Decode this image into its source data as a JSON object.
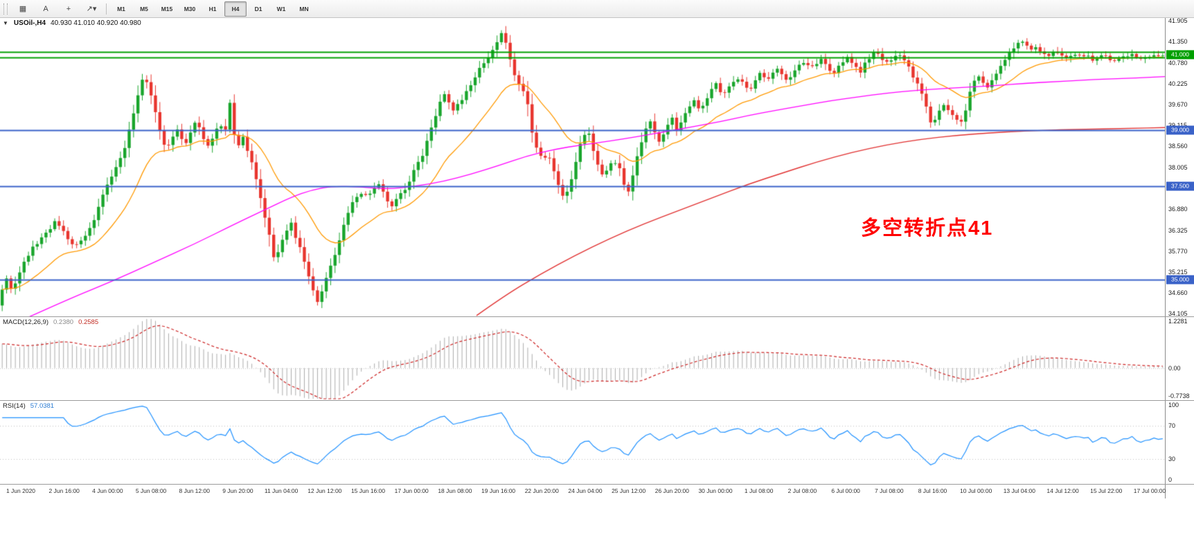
{
  "toolbar": {
    "tools": [
      {
        "name": "chart-window-button",
        "glyph": "▦"
      },
      {
        "name": "text-label-button",
        "glyph": "A"
      },
      {
        "name": "crosshair-button",
        "glyph": "+"
      },
      {
        "name": "arrow-objects-button",
        "glyph": "↗",
        "caret": "▾"
      }
    ],
    "timeframes": [
      "M1",
      "M5",
      "M15",
      "M30",
      "H1",
      "H4",
      "D1",
      "W1",
      "MN"
    ],
    "active_timeframe": "H4"
  },
  "main_chart": {
    "symbol": "USOil-,H4",
    "ohlc": "40.930 41.010 40.920 40.980",
    "collapse_arrow": "▼",
    "price_max": 41.98,
    "price_min": 34.03,
    "axis_labels": [
      "41.905",
      "41.350",
      "40.780",
      "40.225",
      "39.670",
      "39.115",
      "38.560",
      "38.005",
      "37.450",
      "36.880",
      "36.325",
      "35.770",
      "35.215",
      "34.660",
      "34.105"
    ],
    "horizontal_lines": [
      {
        "price": 41.07,
        "color": "#00A000",
        "width": 1.8
      },
      {
        "price": 40.93,
        "color": "#00A000",
        "width": 1.8
      },
      {
        "price": 39.0,
        "color": "#3A62C8",
        "width": 1.8
      },
      {
        "price": 37.5,
        "color": "#3A62C8",
        "width": 1.8
      },
      {
        "price": 35.0,
        "color": "#3A62C8",
        "width": 1.8
      }
    ],
    "price_badges": [
      {
        "text": "41.000",
        "bg": "#00A000",
        "price": 41.0
      },
      {
        "text": "39.000",
        "bg": "#3A62C8",
        "price": 39.0
      },
      {
        "text": "37.500",
        "bg": "#3A62C8",
        "price": 37.5
      },
      {
        "text": "35.000",
        "bg": "#3A62C8",
        "price": 35.0
      }
    ],
    "annotation": {
      "text": "多空转折点41",
      "color": "#FF0000"
    },
    "candle_colors": {
      "up": "#19A52C",
      "down": "#E8352E"
    },
    "ma": {
      "fast": {
        "type": "ema",
        "period": 20,
        "color": "#FF9900"
      },
      "mid": {
        "color": "#FF00FF",
        "points": [
          [
            40,
            34.0
          ],
          [
            100,
            34.5
          ],
          [
            160,
            34.95
          ],
          [
            220,
            35.45
          ],
          [
            280,
            35.95
          ],
          [
            340,
            36.5
          ],
          [
            380,
            36.85
          ],
          [
            420,
            37.2
          ],
          [
            450,
            37.4
          ],
          [
            480,
            37.5
          ],
          [
            520,
            37.48
          ],
          [
            560,
            37.42
          ],
          [
            600,
            37.5
          ],
          [
            640,
            37.62
          ],
          [
            680,
            37.82
          ],
          [
            720,
            38.05
          ],
          [
            760,
            38.3
          ],
          [
            800,
            38.48
          ],
          [
            840,
            38.6
          ],
          [
            880,
            38.7
          ],
          [
            920,
            38.82
          ],
          [
            960,
            38.95
          ],
          [
            1000,
            39.08
          ],
          [
            1040,
            39.22
          ],
          [
            1080,
            39.38
          ],
          [
            1120,
            39.52
          ],
          [
            1160,
            39.65
          ],
          [
            1200,
            39.78
          ],
          [
            1240,
            39.88
          ],
          [
            1280,
            39.98
          ],
          [
            1320,
            40.05
          ],
          [
            1360,
            40.1
          ],
          [
            1400,
            40.14
          ],
          [
            1440,
            40.18
          ],
          [
            1480,
            40.24
          ],
          [
            1520,
            40.28
          ],
          [
            1560,
            40.32
          ],
          [
            1600,
            40.36
          ],
          [
            1640,
            40.38
          ],
          [
            1682,
            40.42
          ]
        ]
      },
      "slow": {
        "color": "#E03030",
        "points": [
          [
            688,
            34.05
          ],
          [
            730,
            34.6
          ],
          [
            780,
            35.15
          ],
          [
            830,
            35.65
          ],
          [
            880,
            36.1
          ],
          [
            930,
            36.5
          ],
          [
            980,
            36.85
          ],
          [
            1030,
            37.2
          ],
          [
            1080,
            37.55
          ],
          [
            1130,
            37.85
          ],
          [
            1180,
            38.15
          ],
          [
            1230,
            38.4
          ],
          [
            1280,
            38.6
          ],
          [
            1330,
            38.75
          ],
          [
            1380,
            38.85
          ],
          [
            1430,
            38.92
          ],
          [
            1480,
            38.97
          ],
          [
            1530,
            39.0
          ],
          [
            1580,
            39.02
          ],
          [
            1630,
            39.04
          ],
          [
            1682,
            39.06
          ]
        ]
      }
    }
  },
  "chart_data": {
    "type": "candlestick-ohlc",
    "symbol": "USOil",
    "timeframe": "H4",
    "last_ohlc": {
      "open": "40.930",
      "high": "41.010",
      "low": "40.920",
      "close": "40.980"
    },
    "bars": 266,
    "y_range": [
      34.03,
      41.98
    ],
    "price_path": [
      [
        0,
        34.5
      ],
      [
        8,
        35.1
      ],
      [
        18,
        34.7
      ],
      [
        30,
        35.3
      ],
      [
        45,
        35.8
      ],
      [
        60,
        36.1
      ],
      [
        80,
        36.55
      ],
      [
        95,
        36.2
      ],
      [
        105,
        35.9
      ],
      [
        118,
        36.1
      ],
      [
        132,
        36.4
      ],
      [
        150,
        37.3
      ],
      [
        165,
        37.9
      ],
      [
        180,
        38.5
      ],
      [
        195,
        39.6
      ],
      [
        207,
        40.45
      ],
      [
        215,
        40.1
      ],
      [
        222,
        39.7
      ],
      [
        232,
        38.9
      ],
      [
        240,
        38.45
      ],
      [
        250,
        38.8
      ],
      [
        258,
        39.1
      ],
      [
        266,
        38.5
      ],
      [
        274,
        38.9
      ],
      [
        283,
        39.3
      ],
      [
        292,
        38.8
      ],
      [
        300,
        38.6
      ],
      [
        310,
        38.9
      ],
      [
        318,
        39.15
      ],
      [
        326,
        39.05
      ],
      [
        331,
        39.8
      ],
      [
        338,
        38.9
      ],
      [
        345,
        38.6
      ],
      [
        352,
        38.8
      ],
      [
        360,
        38.3
      ],
      [
        368,
        37.9
      ],
      [
        378,
        37.0
      ],
      [
        388,
        36.3
      ],
      [
        396,
        35.5
      ],
      [
        404,
        35.9
      ],
      [
        413,
        36.3
      ],
      [
        420,
        36.55
      ],
      [
        428,
        36.1
      ],
      [
        436,
        35.7
      ],
      [
        444,
        35.2
      ],
      [
        452,
        34.7
      ],
      [
        460,
        34.4
      ],
      [
        468,
        34.9
      ],
      [
        476,
        35.3
      ],
      [
        484,
        35.7
      ],
      [
        492,
        36.2
      ],
      [
        500,
        36.7
      ],
      [
        508,
        37.05
      ],
      [
        516,
        37.2
      ],
      [
        524,
        37.35
      ],
      [
        532,
        37.2
      ],
      [
        540,
        37.45
      ],
      [
        548,
        37.6
      ],
      [
        556,
        37.2
      ],
      [
        564,
        36.95
      ],
      [
        572,
        37.15
      ],
      [
        580,
        37.35
      ],
      [
        588,
        37.5
      ],
      [
        596,
        37.9
      ],
      [
        604,
        38.15
      ],
      [
        612,
        38.4
      ],
      [
        620,
        38.9
      ],
      [
        628,
        39.3
      ],
      [
        636,
        39.8
      ],
      [
        644,
        40.0
      ],
      [
        652,
        39.5
      ],
      [
        660,
        39.65
      ],
      [
        668,
        39.85
      ],
      [
        676,
        40.1
      ],
      [
        684,
        40.3
      ],
      [
        692,
        40.6
      ],
      [
        700,
        40.85
      ],
      [
        708,
        41.0
      ],
      [
        716,
        41.25
      ],
      [
        724,
        41.55
      ],
      [
        730,
        41.3
      ],
      [
        736,
        40.9
      ],
      [
        744,
        40.4
      ],
      [
        752,
        40.15
      ],
      [
        760,
        39.9
      ],
      [
        768,
        38.9
      ],
      [
        776,
        38.4
      ],
      [
        784,
        38.2
      ],
      [
        792,
        38.35
      ],
      [
        800,
        37.9
      ],
      [
        808,
        37.4
      ],
      [
        816,
        37.15
      ],
      [
        824,
        37.6
      ],
      [
        832,
        38.2
      ],
      [
        840,
        38.75
      ],
      [
        848,
        39.05
      ],
      [
        856,
        38.5
      ],
      [
        862,
        38.1
      ],
      [
        870,
        37.75
      ],
      [
        878,
        38.0
      ],
      [
        886,
        38.2
      ],
      [
        894,
        38.05
      ],
      [
        900,
        37.6
      ],
      [
        906,
        37.3
      ],
      [
        914,
        37.8
      ],
      [
        922,
        38.4
      ],
      [
        930,
        38.95
      ],
      [
        938,
        39.3
      ],
      [
        946,
        38.9
      ],
      [
        954,
        38.65
      ],
      [
        962,
        39.1
      ],
      [
        970,
        39.35
      ],
      [
        978,
        38.95
      ],
      [
        986,
        39.3
      ],
      [
        994,
        39.6
      ],
      [
        1002,
        39.8
      ],
      [
        1010,
        39.5
      ],
      [
        1018,
        39.7
      ],
      [
        1026,
        40.0
      ],
      [
        1034,
        40.25
      ],
      [
        1042,
        39.95
      ],
      [
        1050,
        40.1
      ],
      [
        1058,
        40.25
      ],
      [
        1066,
        40.4
      ],
      [
        1074,
        40.2
      ],
      [
        1082,
        40.05
      ],
      [
        1090,
        40.3
      ],
      [
        1098,
        40.5
      ],
      [
        1106,
        40.3
      ],
      [
        1114,
        40.5
      ],
      [
        1122,
        40.65
      ],
      [
        1130,
        40.45
      ],
      [
        1138,
        40.3
      ],
      [
        1146,
        40.55
      ],
      [
        1154,
        40.7
      ],
      [
        1162,
        40.85
      ],
      [
        1170,
        40.6
      ],
      [
        1178,
        40.75
      ],
      [
        1186,
        40.9
      ],
      [
        1194,
        40.7
      ],
      [
        1202,
        40.5
      ],
      [
        1210,
        40.65
      ],
      [
        1218,
        40.8
      ],
      [
        1226,
        40.95
      ],
      [
        1234,
        40.7
      ],
      [
        1242,
        40.55
      ],
      [
        1250,
        40.8
      ],
      [
        1258,
        41.0
      ],
      [
        1266,
        41.1
      ],
      [
        1274,
        40.9
      ],
      [
        1282,
        40.75
      ],
      [
        1290,
        40.95
      ],
      [
        1298,
        41.05
      ],
      [
        1306,
        40.85
      ],
      [
        1314,
        40.6
      ],
      [
        1322,
        40.3
      ],
      [
        1330,
        40.0
      ],
      [
        1338,
        39.6
      ],
      [
        1346,
        39.1
      ],
      [
        1354,
        39.45
      ],
      [
        1362,
        39.7
      ],
      [
        1370,
        39.55
      ],
      [
        1378,
        39.3
      ],
      [
        1386,
        39.15
      ],
      [
        1394,
        39.5
      ],
      [
        1402,
        40.1
      ],
      [
        1410,
        40.45
      ],
      [
        1418,
        40.3
      ],
      [
        1426,
        40.15
      ],
      [
        1434,
        40.4
      ],
      [
        1442,
        40.6
      ],
      [
        1450,
        40.85
      ],
      [
        1458,
        41.05
      ],
      [
        1466,
        41.25
      ],
      [
        1474,
        41.35
      ],
      [
        1482,
        41.25
      ],
      [
        1490,
        41.1
      ],
      [
        1498,
        41.2
      ],
      [
        1506,
        41.05
      ],
      [
        1514,
        40.95
      ],
      [
        1522,
        41.1
      ],
      [
        1530,
        41.05
      ],
      [
        1538,
        40.9
      ],
      [
        1546,
        41.0
      ],
      [
        1554,
        41.05
      ],
      [
        1562,
        40.9
      ],
      [
        1570,
        40.95
      ],
      [
        1578,
        40.85
      ],
      [
        1586,
        40.9
      ],
      [
        1594,
        41.0
      ],
      [
        1602,
        40.9
      ],
      [
        1610,
        40.85
      ],
      [
        1618,
        40.95
      ],
      [
        1626,
        40.9
      ],
      [
        1634,
        41.0
      ],
      [
        1642,
        40.9
      ],
      [
        1650,
        40.95
      ],
      [
        1658,
        40.9
      ],
      [
        1666,
        40.95
      ],
      [
        1674,
        40.98
      ],
      [
        1682,
        40.98
      ]
    ],
    "time_labels": [
      "1 Jun 2020",
      "2 Jun 16:00",
      "4 Jun 00:00",
      "5 Jun 08:00",
      "8 Jun 12:00",
      "9 Jun 20:00",
      "11 Jun 04:00",
      "12 Jun 12:00",
      "15 Jun 16:00",
      "17 Jun 00:00",
      "18 Jun 08:00",
      "19 Jun 16:00",
      "22 Jun 20:00",
      "24 Jun 04:00",
      "25 Jun 12:00",
      "26 Jun 20:00",
      "30 Jun 00:00",
      "1 Jul 08:00",
      "2 Jul 08:00",
      "6 Jul 00:00",
      "7 Jul 08:00",
      "8 Jul 16:00",
      "10 Jul 00:00",
      "13 Jul 04:00",
      "14 Jul 12:00",
      "15 Jul 22:00",
      "17 Jul 00:00"
    ]
  },
  "macd": {
    "title": "MACD(12,26,9)",
    "value_main": "0.2380",
    "value_signal": "0.2585",
    "axis_labels": [
      "1.2281",
      "0.00",
      "-0.7738"
    ],
    "scale": {
      "max": 1.2281,
      "min": -0.7738
    },
    "histogram_color": "#ABABAB",
    "signal_color": "#CC2222",
    "params": {
      "fast": 12,
      "slow": 26,
      "signal": 9
    }
  },
  "rsi": {
    "title": "RSI(14)",
    "value": "57.0381",
    "axis_labels": [
      "100",
      "70",
      "30",
      "0"
    ],
    "levels": [
      70,
      30
    ],
    "line_color": "#1E90FF",
    "period": 14
  }
}
